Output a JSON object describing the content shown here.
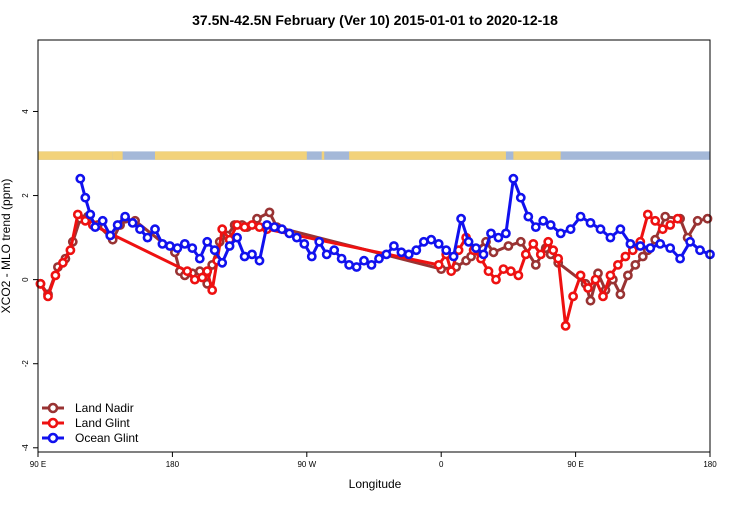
{
  "chart_data": {
    "type": "line",
    "title": "37.5N-42.5N February (Ver 10)   2015-01-01 to 2020-12-18",
    "xlabel": "Longitude",
    "ylabel": "XCO2 - MLO trend (ppm)",
    "xlim": [
      -90,
      180
    ],
    "ylim": [
      -4.1,
      5.7
    ],
    "x_ticks": [
      {
        "value": -90,
        "label": "90 E"
      },
      {
        "value": -36,
        "label": "180"
      },
      {
        "value": 18,
        "label": "90 W"
      },
      {
        "value": 72,
        "label": "0"
      },
      {
        "value": 126,
        "label": "90 E"
      },
      {
        "value": 180,
        "label": "180"
      }
    ],
    "y_ticks": [
      -4,
      -2,
      0,
      2,
      4
    ],
    "legend_position": "bottom-left",
    "landmask": {
      "y_range": [
        2.85,
        3.05
      ],
      "ocean_color": "#a4b8d8",
      "land_color": "#f2d27a",
      "land_spans": [
        [
          -90,
          -60
        ],
        [
          -57,
          -60
        ],
        [
          -59,
          -56
        ],
        [
          -43,
          18
        ],
        [
          24,
          25
        ],
        [
          35,
          98
        ],
        [
          101,
          120
        ]
      ]
    },
    "series": [
      {
        "name": "Land Nadir",
        "color": "#993333",
        "x": [
          -89,
          -86,
          -82,
          -79,
          -76,
          -73,
          -70,
          -66,
          -60,
          -57,
          -55,
          -51,
          -35,
          -33,
          -31,
          -28,
          -25,
          -22,
          -20,
          -17,
          -14,
          -11,
          -8,
          -6,
          -2,
          3,
          6,
          72,
          78,
          82,
          84,
          86,
          90,
          93,
          99,
          104,
          110,
          114,
          116,
          119,
          130,
          132,
          135,
          138,
          141,
          144,
          147,
          150,
          153,
          155,
          158,
          162,
          168,
          171,
          175,
          179
        ],
        "y": [
          -0.1,
          -0.35,
          0.3,
          0.5,
          0.9,
          1.45,
          1.5,
          1.3,
          0.95,
          1.3,
          1.45,
          1.4,
          0.65,
          0.2,
          0.1,
          0.15,
          0.2,
          -0.1,
          0.35,
          0.9,
          1.05,
          1.3,
          1.3,
          1.25,
          1.45,
          1.6,
          1.25,
          0.25,
          0.3,
          0.45,
          0.55,
          0.7,
          0.9,
          0.65,
          0.8,
          0.9,
          0.35,
          0.75,
          0.6,
          0.4,
          -0.1,
          -0.5,
          0.15,
          -0.25,
          0.0,
          -0.35,
          0.1,
          0.35,
          0.55,
          0.7,
          0.95,
          1.5,
          1.45,
          1.0,
          1.4,
          1.45
        ],
        "comment": "x in degrees longitude on the chart's continuous axis (90E at -90, 180 at -36, 90W at 18, 0 at 72, 90E at 126, 180 at 180)"
      },
      {
        "name": "Land Glint",
        "color": "#ee1111",
        "x": [
          -89,
          -86,
          -83,
          -80,
          -77,
          -74,
          -71,
          -68,
          -30,
          -27,
          -24,
          -22,
          -20,
          -18,
          -16,
          -13,
          -10,
          -7,
          -4,
          -1,
          2,
          71,
          74,
          76,
          79,
          82,
          85,
          88,
          91,
          94,
          97,
          100,
          103,
          106,
          109,
          112,
          115,
          117,
          119,
          122,
          125,
          128,
          131,
          134,
          137,
          140,
          143,
          146,
          149,
          152,
          155,
          158,
          161,
          164,
          167
        ],
        "y": [
          -0.1,
          -0.4,
          0.1,
          0.4,
          0.7,
          1.55,
          1.4,
          1.3,
          0.2,
          0.0,
          0.05,
          0.2,
          -0.25,
          0.45,
          1.2,
          0.95,
          1.3,
          1.25,
          1.3,
          1.25,
          1.2,
          0.35,
          0.6,
          0.2,
          0.7,
          1.0,
          0.7,
          0.5,
          0.2,
          0.0,
          0.25,
          0.2,
          0.1,
          0.6,
          0.85,
          0.6,
          0.9,
          0.7,
          0.5,
          -1.1,
          -0.4,
          0.1,
          -0.2,
          0.0,
          -0.4,
          0.1,
          0.35,
          0.55,
          0.7,
          0.9,
          1.55,
          1.4,
          1.2,
          1.3,
          1.45
        ]
      },
      {
        "name": "Ocean Glint",
        "color": "#1111ee",
        "x": [
          -73,
          -71,
          -69,
          -67,
          -64,
          -61,
          -58,
          -55,
          -52,
          -49,
          -46,
          -43,
          -40,
          -37,
          -34,
          -31,
          -28,
          -25,
          -22,
          -19,
          -16,
          -13,
          -10,
          -7,
          -4,
          -1,
          2,
          5,
          8,
          11,
          14,
          17,
          20,
          23,
          26,
          29,
          32,
          35,
          38,
          41,
          44,
          47,
          50,
          53,
          56,
          59,
          62,
          65,
          68,
          71,
          74,
          77,
          80,
          83,
          86,
          89,
          92,
          95,
          98,
          101,
          104,
          107,
          110,
          113,
          116,
          120,
          124,
          128,
          132,
          136,
          140,
          144,
          148,
          152,
          156,
          160,
          164,
          168,
          172,
          176,
          180
        ],
        "y": [
          2.4,
          1.95,
          1.55,
          1.25,
          1.4,
          1.05,
          1.3,
          1.5,
          1.35,
          1.2,
          1.0,
          1.2,
          0.85,
          0.8,
          0.75,
          0.85,
          0.75,
          0.5,
          0.9,
          0.7,
          0.4,
          0.8,
          1.0,
          0.55,
          0.6,
          0.45,
          1.3,
          1.25,
          1.2,
          1.1,
          1.0,
          0.85,
          0.55,
          0.9,
          0.6,
          0.7,
          0.5,
          0.35,
          0.3,
          0.45,
          0.35,
          0.5,
          0.6,
          0.8,
          0.65,
          0.6,
          0.7,
          0.9,
          0.95,
          0.85,
          0.7,
          0.55,
          1.45,
          0.9,
          0.75,
          0.6,
          1.1,
          1.0,
          1.1,
          2.4,
          1.95,
          1.5,
          1.25,
          1.4,
          1.3,
          1.1,
          1.2,
          1.5,
          1.35,
          1.2,
          1.0,
          1.2,
          0.85,
          0.8,
          0.75,
          0.85,
          0.75,
          0.5,
          0.9,
          0.7,
          0.6
        ],
        "comment": "values estimated from gridlines"
      }
    ]
  }
}
